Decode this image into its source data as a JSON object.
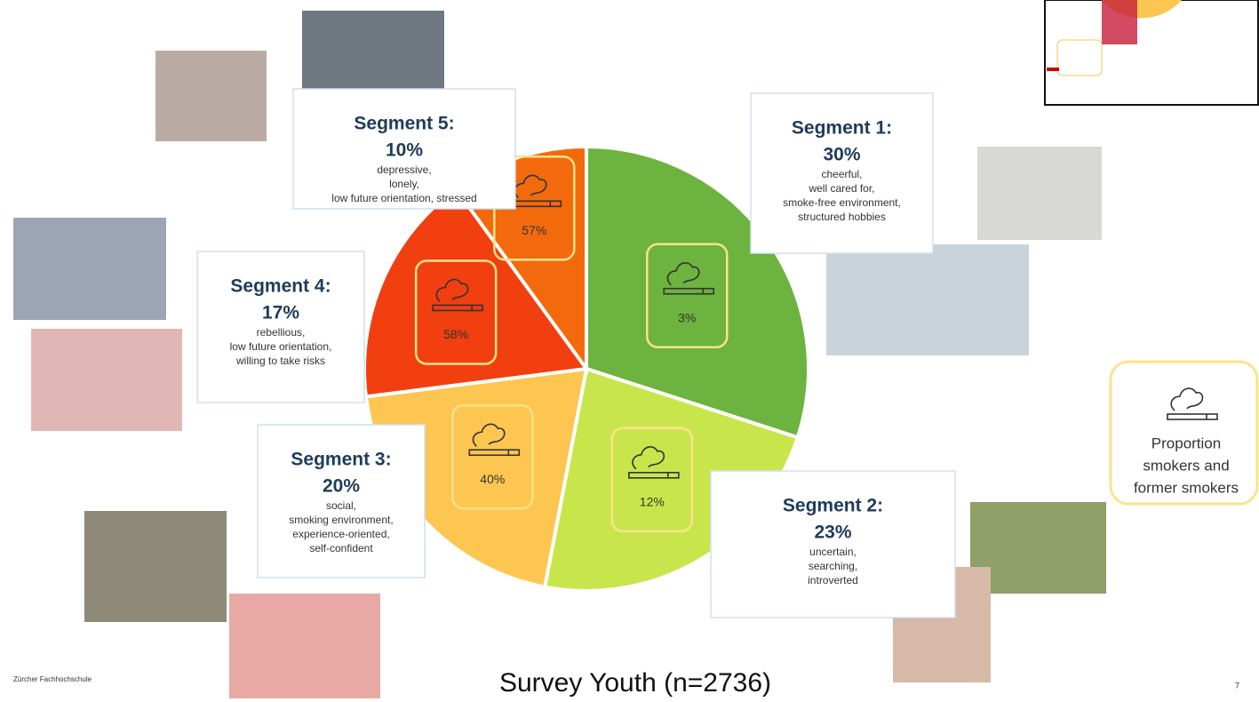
{
  "chart_data": {
    "type": "pie",
    "categories": [
      "Segment 1:",
      "Segment 2:",
      "Segment 3:",
      "Segment 4:",
      "Segment 5:"
    ],
    "values": [
      30,
      23,
      20,
      17,
      10
    ],
    "value_labels": [
      "30%",
      "23%",
      "20%",
      "17%",
      "10%"
    ],
    "colors": [
      "#6cb33f",
      "#c8e64c",
      "#fdc650",
      "#f13f10",
      "#f36a0c"
    ],
    "descriptions": [
      [
        "cheerful,",
        "well cared for,",
        "smoke-free environment,",
        "structured hobbies"
      ],
      [
        "uncertain,",
        "searching,",
        "introverted"
      ],
      [
        "social,",
        "smoking environment,",
        "experience-oriented,",
        "self-confident"
      ],
      [
        "rebellious,",
        "low future orientation,",
        "willing to take risks"
      ],
      [
        "depressive,",
        "lonely,",
        "low future orientation,  stressed"
      ]
    ],
    "smokers": {
      "values": [
        3,
        12,
        40,
        58,
        57
      ],
      "value_labels": [
        "3%",
        "12%",
        "40%",
        "58%",
        "57%"
      ]
    },
    "legend_text": [
      "Proportion",
      "smokers and",
      "former smokers"
    ]
  },
  "caption": "Survey Youth (n=2736)",
  "footer": "Zürcher Fachhochschule",
  "page_number": 7
}
